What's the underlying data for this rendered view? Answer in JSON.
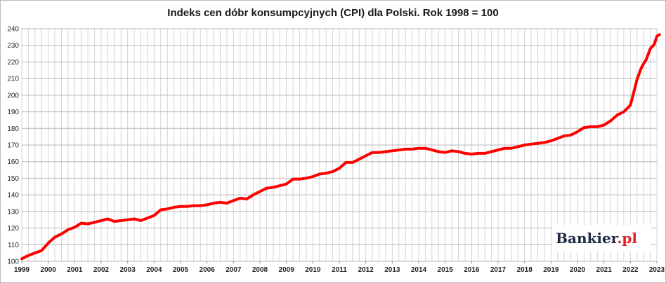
{
  "chart_data": {
    "type": "line",
    "title": "Indeks cen dóbr konsumpcyjnych (CPI) dla Polski. Rok 1998 = 100",
    "xlabel": "",
    "ylabel": "",
    "xlim": [
      1999,
      2023
    ],
    "ylim": [
      100,
      240
    ],
    "y_ticks": [
      100,
      110,
      120,
      130,
      140,
      150,
      160,
      170,
      180,
      190,
      200,
      210,
      220,
      230,
      240
    ],
    "x_ticks": [
      "1999",
      "2000",
      "2001",
      "2002",
      "2003",
      "2004",
      "2005",
      "2006",
      "2007",
      "2008",
      "2009",
      "2010",
      "2011",
      "2012",
      "2013",
      "2014",
      "2015",
      "2016",
      "2017",
      "2018",
      "2019",
      "2020",
      "2021",
      "2022",
      "2023"
    ],
    "grid": true,
    "legend": "none",
    "line_color": "#ff0000",
    "series": [
      {
        "x": [
          1999.0,
          1999.25,
          1999.5,
          1999.75,
          2000.0,
          2000.25,
          2000.5,
          2000.75,
          2001.0,
          2001.25,
          2001.5,
          2001.75,
          2002.0,
          2002.25,
          2002.5,
          2002.75,
          2003.0,
          2003.25,
          2003.5,
          2003.75,
          2004.0,
          2004.25,
          2004.5,
          2004.75,
          2005.0,
          2005.25,
          2005.5,
          2005.75,
          2006.0,
          2006.25,
          2006.5,
          2006.75,
          2007.0,
          2007.25,
          2007.5,
          2007.75,
          2008.0,
          2008.25,
          2008.5,
          2008.75,
          2009.0,
          2009.25,
          2009.5,
          2009.75,
          2010.0,
          2010.25,
          2010.5,
          2010.75,
          2011.0,
          2011.25,
          2011.5,
          2011.75,
          2012.0,
          2012.25,
          2012.5,
          2012.75,
          2013.0,
          2013.25,
          2013.5,
          2013.75,
          2014.0,
          2014.25,
          2014.5,
          2014.75,
          2015.0,
          2015.25,
          2015.5,
          2015.75,
          2016.0,
          2016.25,
          2016.5,
          2016.75,
          2017.0,
          2017.25,
          2017.5,
          2017.75,
          2018.0,
          2018.25,
          2018.5,
          2018.75,
          2019.0,
          2019.25,
          2019.5,
          2019.75,
          2020.0,
          2020.25,
          2020.5,
          2020.75,
          2021.0,
          2021.25,
          2021.5,
          2021.75,
          2022.0,
          2022.1,
          2022.25,
          2022.4,
          2022.5,
          2022.6,
          2022.75,
          2022.9,
          2023.0,
          2023.1
        ],
        "values": [
          101.5,
          103.5,
          105.0,
          106.5,
          111.0,
          114.5,
          116.5,
          119.0,
          120.5,
          123.0,
          122.5,
          123.5,
          124.5,
          125.5,
          124.0,
          124.5,
          125.0,
          125.5,
          124.5,
          126.0,
          127.5,
          131.0,
          131.5,
          132.5,
          133.0,
          133.0,
          133.5,
          133.5,
          134.0,
          135.0,
          135.5,
          135.0,
          136.5,
          138.0,
          137.5,
          140.0,
          142.0,
          144.0,
          144.5,
          145.5,
          146.5,
          149.5,
          149.5,
          150.0,
          151.0,
          152.5,
          153.0,
          154.0,
          156.0,
          159.5,
          159.5,
          161.5,
          163.5,
          165.5,
          165.5,
          166.0,
          166.5,
          167.0,
          167.5,
          167.5,
          168.0,
          168.0,
          167.0,
          166.0,
          165.5,
          166.5,
          166.0,
          165.0,
          164.5,
          165.0,
          165.0,
          166.0,
          167.0,
          168.0,
          168.0,
          169.0,
          170.0,
          170.5,
          171.0,
          171.5,
          172.5,
          174.0,
          175.5,
          176.0,
          178.0,
          180.5,
          181.0,
          181.0,
          182.0,
          184.5,
          188.0,
          190.0,
          194.0,
          200.0,
          209.5,
          216.0,
          219.0,
          221.5,
          228.0,
          230.5,
          235.5,
          236.5
        ]
      }
    ]
  },
  "logo": {
    "brand": "Bankier",
    "dot_suffix": ".pl"
  }
}
